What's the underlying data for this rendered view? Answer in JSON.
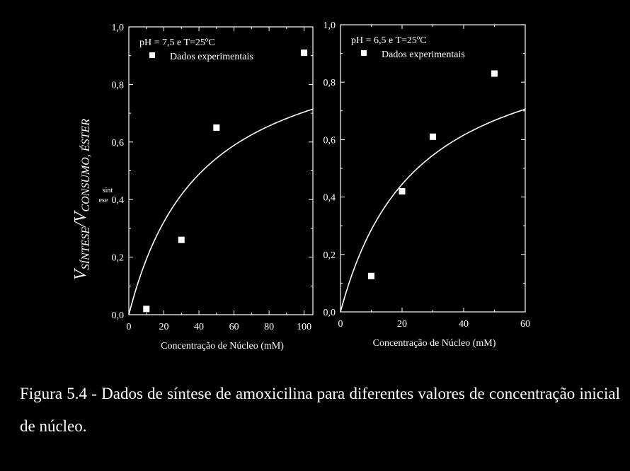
{
  "chart_data": [
    {
      "type": "scatter",
      "annotation": "pH = 7,5 e T=25ºC",
      "legend_entry": "Dados experimentais",
      "legend_position": "top-left",
      "xlabel": "Concentração de Núcleo (mM)",
      "ylabel_main": "V",
      "ylabel_main_sub": "SÍNTESE",
      "ylabel_slash": "/V",
      "ylabel_slash_sub": "CONSUMO, ÉSTER",
      "ylabel_stray_top": "sint",
      "ylabel_stray_bottom": "ese",
      "xlim": [
        0,
        105
      ],
      "ylim": [
        0,
        1.0
      ],
      "xticks": [
        0,
        20,
        40,
        60,
        80,
        100
      ],
      "xtick_labels": [
        "0",
        "20",
        "40",
        "60",
        "80",
        "100"
      ],
      "yticks": [
        0,
        0.2,
        0.4,
        0.6,
        0.8,
        1.0
      ],
      "ytick_labels": [
        "0,0",
        "0,2",
        "0,4",
        "0,6",
        "0,8",
        "1,0"
      ],
      "grid": false,
      "points": [
        {
          "x": 10,
          "y": 0.02
        },
        {
          "x": 30,
          "y": 0.26
        },
        {
          "x": 50,
          "y": 0.65
        },
        {
          "x": 100,
          "y": 0.91
        }
      ],
      "fit": {
        "model": "vmax*x/(km+x)",
        "vmax": 1.0,
        "km": 42
      }
    },
    {
      "type": "scatter",
      "annotation": "pH = 6,5 e T=25ºC",
      "legend_entry": "Dados experimentais",
      "legend_position": "top-left",
      "xlabel": "Concentração de Núcleo (mM)",
      "xlim": [
        0,
        60
      ],
      "ylim": [
        0,
        1.0
      ],
      "xticks": [
        0,
        20,
        40,
        60
      ],
      "xtick_labels": [
        "0",
        "20",
        "40",
        "60"
      ],
      "yticks": [
        0,
        0.2,
        0.4,
        0.6,
        0.8,
        1.0
      ],
      "ytick_labels": [
        "0,0",
        "0,2",
        "0,4",
        "0,6",
        "0,8",
        "1,0"
      ],
      "grid": false,
      "points": [
        {
          "x": 10,
          "y": 0.125
        },
        {
          "x": 20,
          "y": 0.42
        },
        {
          "x": 30,
          "y": 0.61
        },
        {
          "x": 50,
          "y": 0.83
        }
      ],
      "fit": {
        "model": "vmax*x/(km+x)",
        "vmax": 1.0,
        "km": 25
      }
    }
  ],
  "caption": "Figura 5.4 - Dados de síntese de amoxicilina para diferentes valores de concentração inicial de núcleo.",
  "colors": {
    "background": "#000000",
    "foreground": "#ffffff"
  }
}
